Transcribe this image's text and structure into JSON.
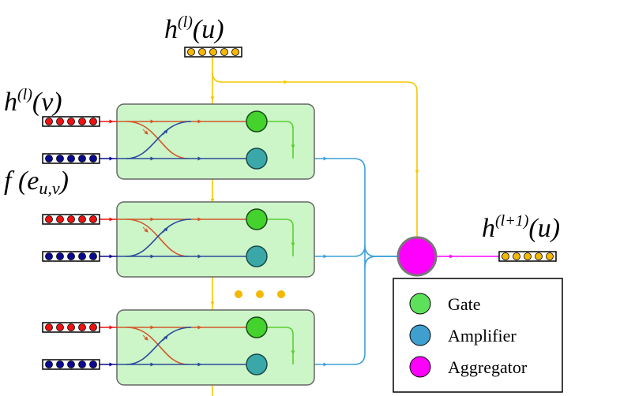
{
  "labels": {
    "h_u": {
      "base": "h",
      "sup": "(l)",
      "arg": "(u)"
    },
    "h_v": {
      "base": "h",
      "sup": "(l)",
      "arg": "(v)"
    },
    "f_e": {
      "base": "f (e",
      "sub": "u,v",
      "arg": ")"
    },
    "h_next": {
      "base": "h",
      "sup": "(l+1)",
      "arg": "(u)"
    }
  },
  "legend": [
    {
      "label": "Gate",
      "color": "#5ee05a"
    },
    {
      "label": "Amplifier",
      "color": "#3fa0d0"
    },
    {
      "label": "Aggregator",
      "color": "#ff00ff"
    }
  ],
  "colors": {
    "module_fill": "#ccf5c8",
    "node_feature": "#ee1111",
    "edge_feature": "#0a0a90",
    "hidden_state": "#f5b800",
    "yellow_line": "#f5c800",
    "red_line": "#d05a2a",
    "blue_line": "#2a4c9a",
    "gate": "#44d22c",
    "amplifier": "#3aa8a8",
    "output_line": "#3ca0dc",
    "aggregator": "#ff00ff"
  },
  "module_count_shown": 3,
  "ellipsis_dots": 3
}
